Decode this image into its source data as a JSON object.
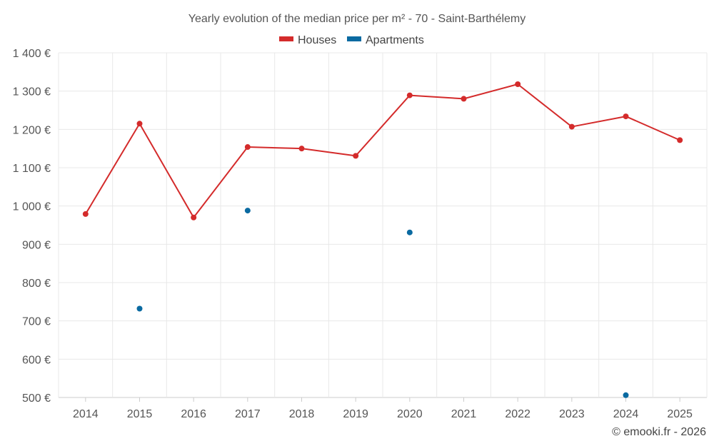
{
  "chart_data": {
    "type": "line",
    "title": "Yearly evolution of the median price per m² - 70 - Saint-Barthélemy",
    "categories": [
      "2014",
      "2015",
      "2016",
      "2017",
      "2018",
      "2019",
      "2020",
      "2021",
      "2022",
      "2023",
      "2024",
      "2025"
    ],
    "y_ticks": [
      "500 €",
      "600 €",
      "700 €",
      "800 €",
      "900 €",
      "1 000 €",
      "1 100 €",
      "1 200 €",
      "1 300 €",
      "1 400 €"
    ],
    "ylim": [
      500,
      1400
    ],
    "xlabel": "",
    "ylabel": "",
    "grid": true,
    "legend_position": "top-center",
    "series": [
      {
        "name": "Houses",
        "color": "#d42b2b",
        "connected": true,
        "values": [
          979,
          1215,
          970,
          1154,
          1150,
          1131,
          1289,
          1280,
          1318,
          1207,
          1234,
          1172
        ]
      },
      {
        "name": "Apartments",
        "color": "#0a6aa1",
        "connected": false,
        "values": [
          null,
          732,
          null,
          988,
          null,
          null,
          931,
          null,
          null,
          null,
          506,
          null
        ]
      }
    ]
  },
  "credit": "© emooki.fr - 2026"
}
